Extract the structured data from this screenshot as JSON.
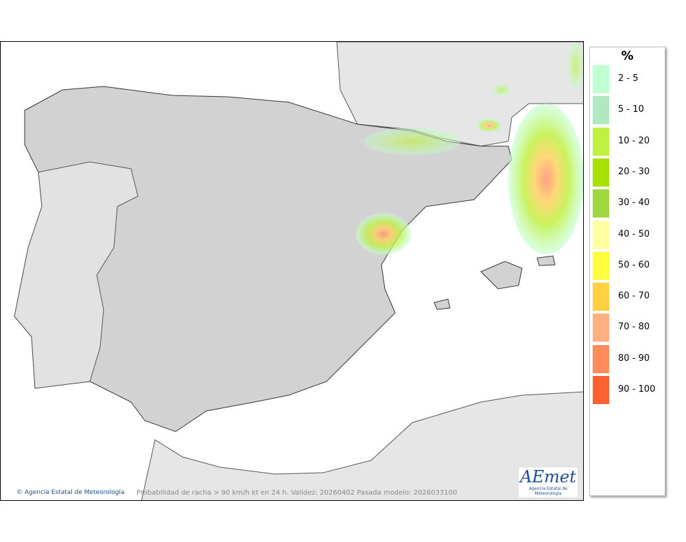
{
  "legend": {
    "title": "%",
    "items": [
      {
        "label": "2 - 5",
        "color": "#c0ffd0"
      },
      {
        "label": "5 - 10",
        "color": "#b0e8c0"
      },
      {
        "label": "10 - 20",
        "color": "#c0f040"
      },
      {
        "label": "20 - 30",
        "color": "#a8e000"
      },
      {
        "label": "30 - 40",
        "color": "#a0d840"
      },
      {
        "label": "40 - 50",
        "color": "#ffffa0"
      },
      {
        "label": "50 - 60",
        "color": "#ffff40"
      },
      {
        "label": "60 - 70",
        "color": "#ffd040"
      },
      {
        "label": "70 - 80",
        "color": "#ffb080"
      },
      {
        "label": "80 - 90",
        "color": "#ff8c5a"
      },
      {
        "label": "90 - 100",
        "color": "#ff6030"
      }
    ]
  },
  "footer": {
    "credit": "Agencia Estatal de Meteorología",
    "caption": "Probabilidad de racha > 90 km/h kt en 24 h. Validez: 20260402 Pasada modelo: 2026033100"
  },
  "logo": {
    "text": "AEmet",
    "subtitle": "Agencia Estatal de Meteorología"
  }
}
